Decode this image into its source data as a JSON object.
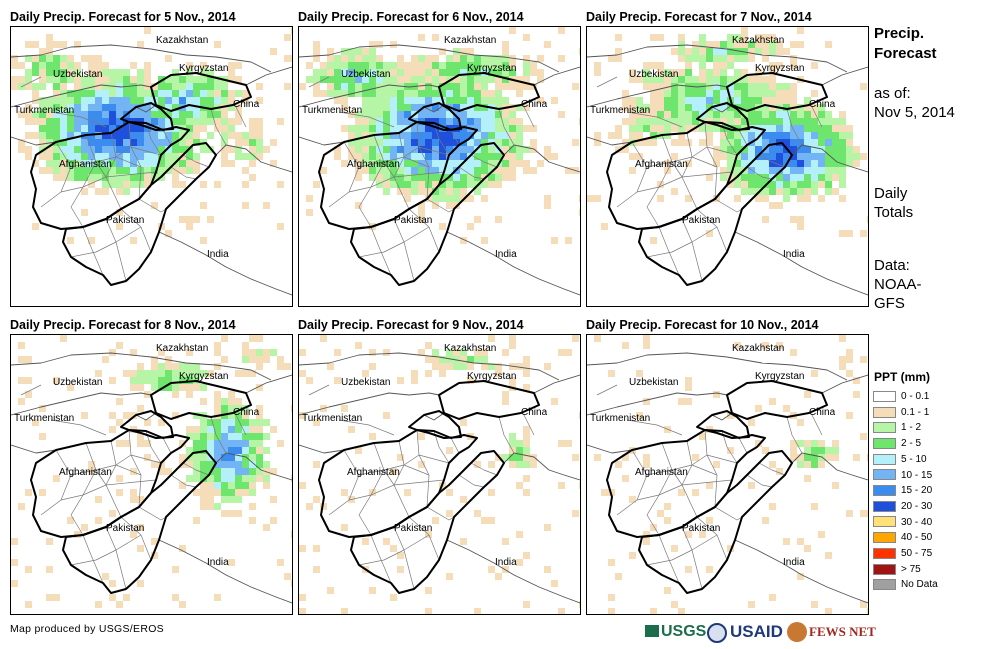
{
  "panels": [
    {
      "title": "Daily Precip. Forecast for 5 Nov., 2014",
      "pattern": "wet-west"
    },
    {
      "title": "Daily Precip. Forecast for 6 Nov., 2014",
      "pattern": "wet-center"
    },
    {
      "title": "Daily Precip. Forecast for 7 Nov., 2014",
      "pattern": "wet-east"
    },
    {
      "title": "Daily Precip. Forecast for 8 Nov., 2014",
      "pattern": "moderate-east"
    },
    {
      "title": "Daily Precip. Forecast for 9 Nov., 2014",
      "pattern": "light"
    },
    {
      "title": "Daily Precip. Forecast for 10 Nov., 2014",
      "pattern": "very-light"
    }
  ],
  "map_labels": {
    "kazakhstan": "Kazakhstan",
    "uzbekistan": "Uzbekistan",
    "kyrgyzstan": "Kyrgyzstan",
    "turkmenistan": "Turkmenistan",
    "china": "China",
    "afghanistan": "Afghanistan",
    "pakistan": "Pakistan",
    "india": "India"
  },
  "side": {
    "title_line1": "Precip.",
    "title_line2": "Forecast",
    "asof_line1": "as of:",
    "asof_line2": "Nov 5, 2014",
    "daily_line1": "Daily",
    "daily_line2": "Totals",
    "data_line1": "Data:",
    "data_line2": "NOAA-",
    "data_line3": "GFS"
  },
  "legend": {
    "title": "PPT (mm)",
    "items": [
      {
        "label": "0 - 0.1",
        "color": "#ffffff"
      },
      {
        "label": "0.1 - 1",
        "color": "#f5ddb9"
      },
      {
        "label": "1 - 2",
        "color": "#b5f5a5"
      },
      {
        "label": "2 - 5",
        "color": "#6ee66e"
      },
      {
        "label": "5 - 10",
        "color": "#b4f0fa"
      },
      {
        "label": "10 - 15",
        "color": "#73b4f5"
      },
      {
        "label": "15 - 20",
        "color": "#3c8cf0"
      },
      {
        "label": "20 - 30",
        "color": "#1e50dc"
      },
      {
        "label": "30 - 40",
        "color": "#ffe178"
      },
      {
        "label": "40 - 50",
        "color": "#ffa500"
      },
      {
        "label": "50 - 75",
        "color": "#ff3200"
      },
      {
        "label": "> 75",
        "color": "#a01414"
      },
      {
        "label": "No Data",
        "color": "#a0a0a0"
      }
    ]
  },
  "credit": "Map produced by USGS/EROS",
  "logos": {
    "usgs": "USGS",
    "usaid": "USAID",
    "fewsnet": "FEWS NET"
  }
}
